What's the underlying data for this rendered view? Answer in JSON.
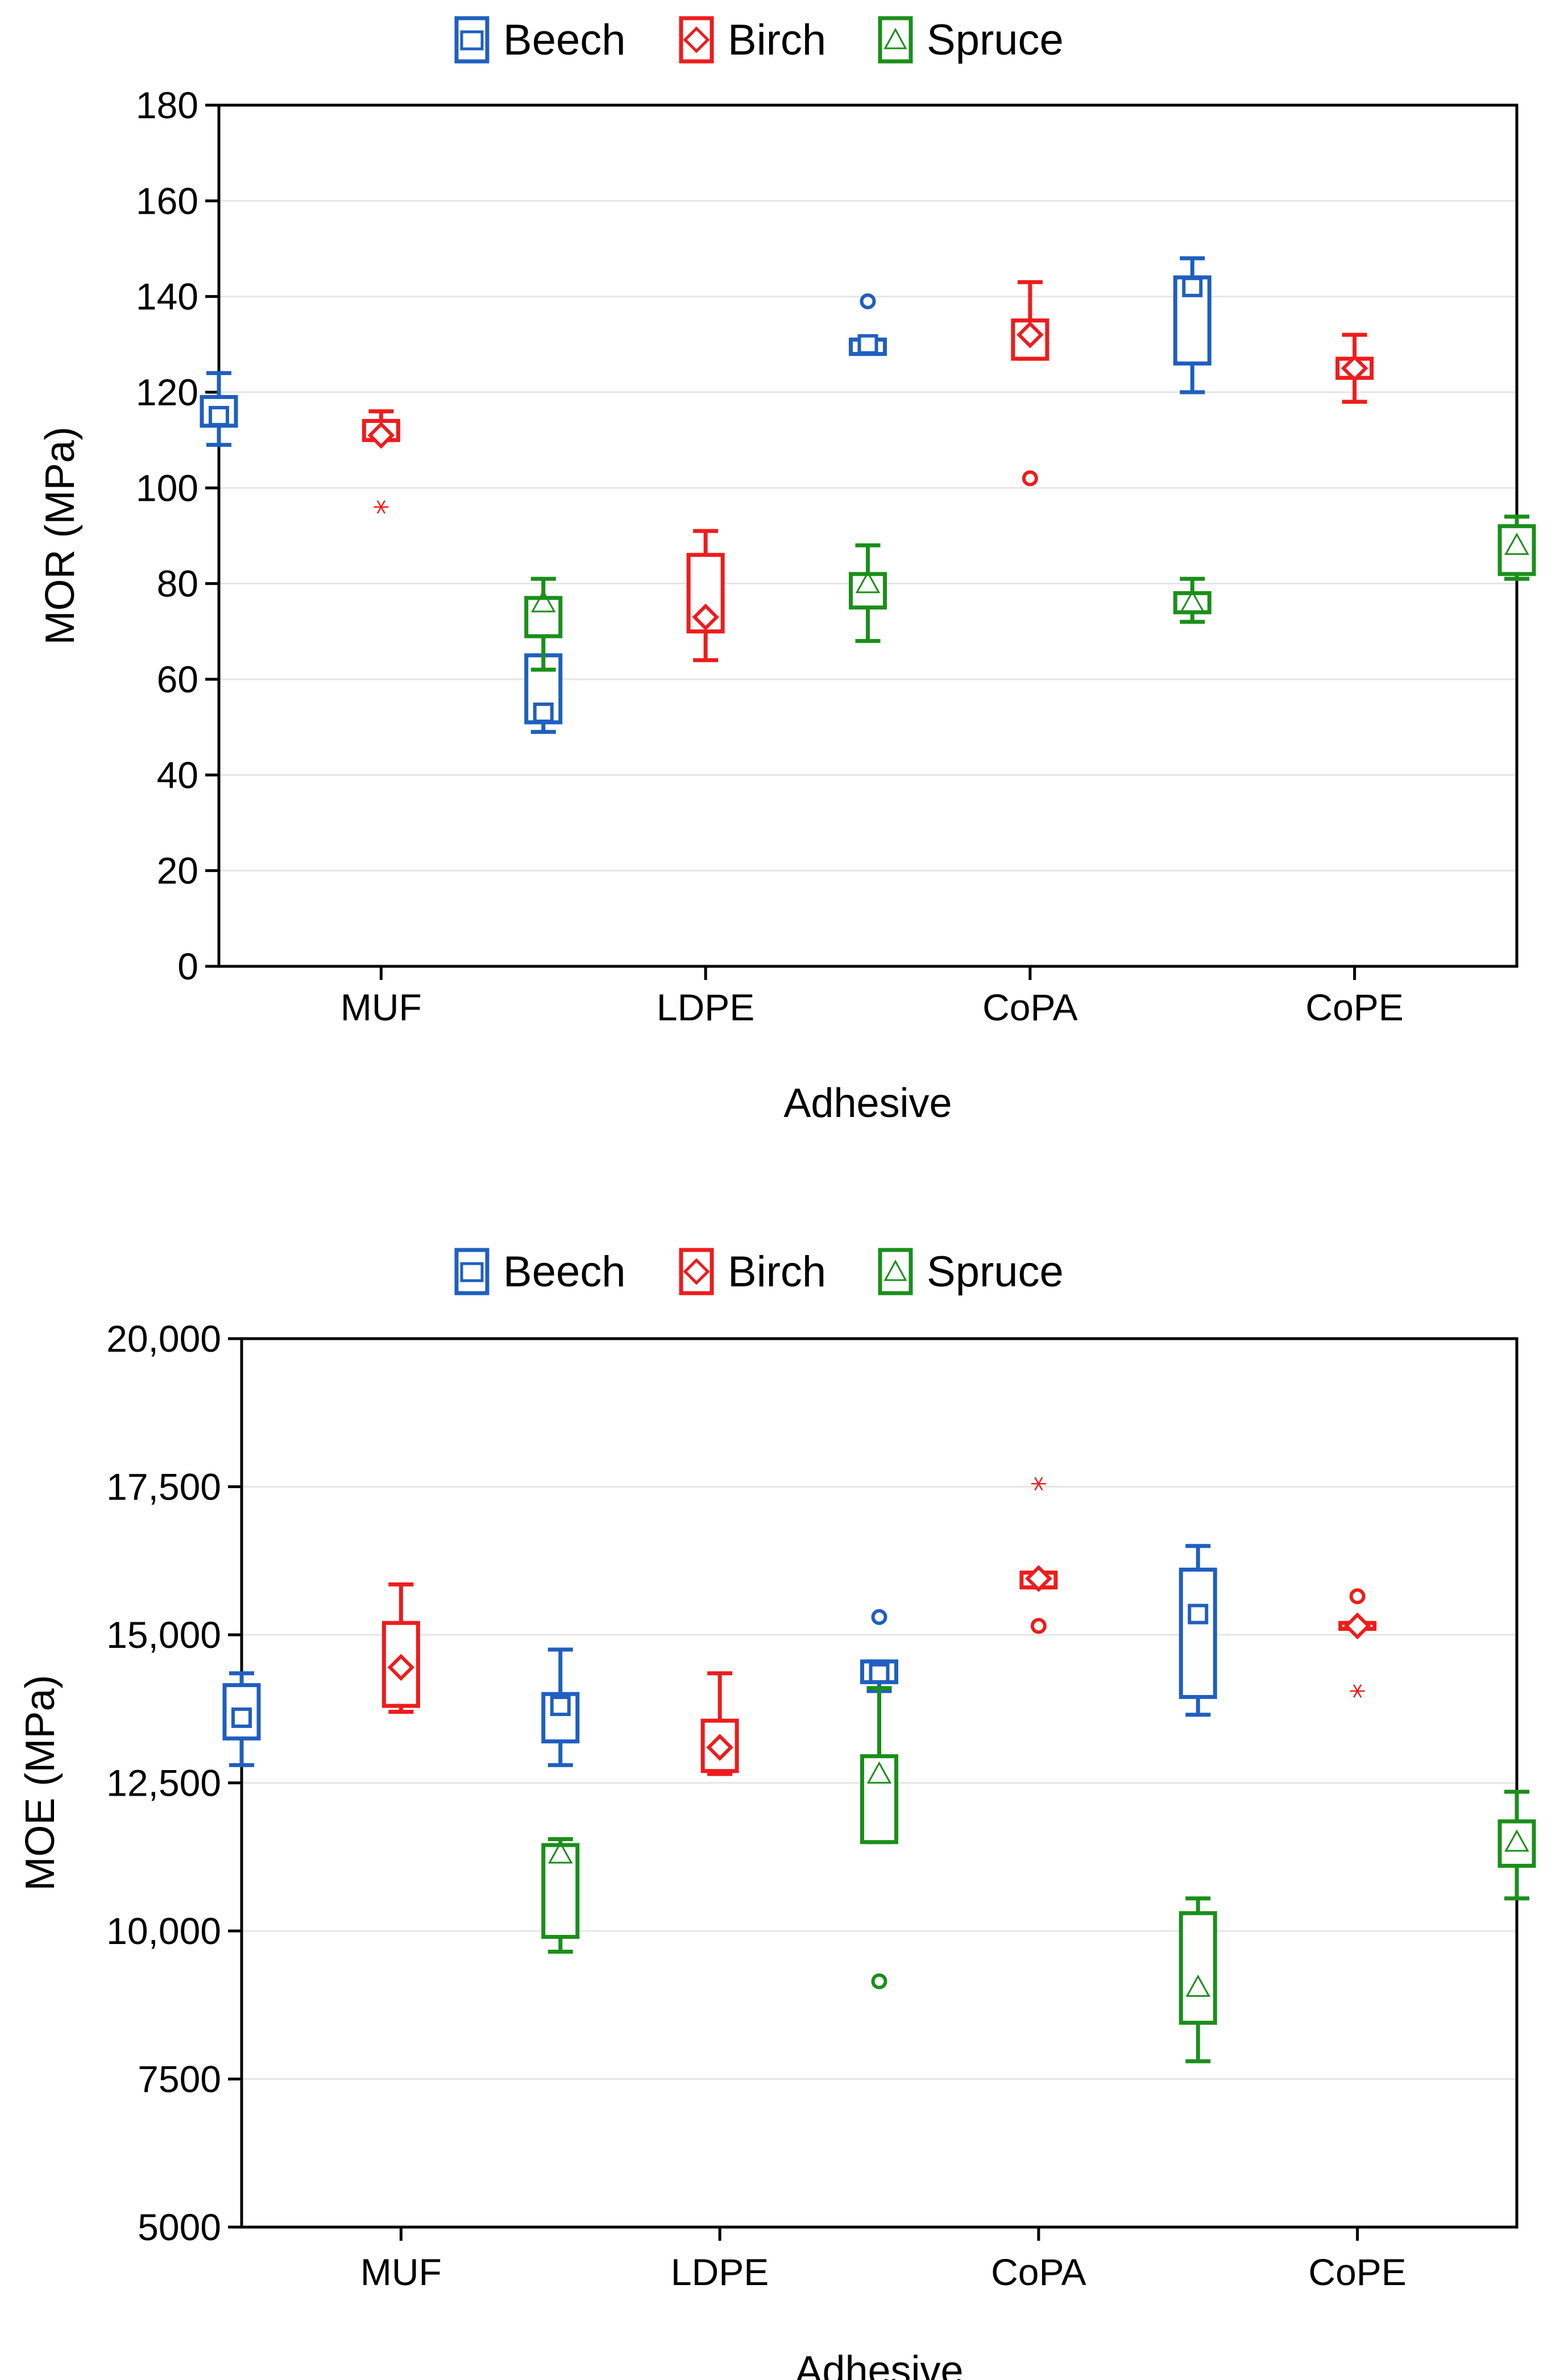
{
  "colors": {
    "Beech": "#1f5fc0",
    "Birch": "#ee1c1c",
    "Spruce": "#1a8f1a",
    "gridline": "#e6e6e6",
    "axis": "#000000"
  },
  "chart_data": [
    {
      "type": "box",
      "legend": {
        "position": "top",
        "entries": [
          "Beech",
          "Birch",
          "Spruce"
        ]
      },
      "xlabel": "Adhesive",
      "ylabel": "MOR (MPa)",
      "ylim": [
        0,
        180
      ],
      "yticks": [
        0,
        20,
        40,
        60,
        80,
        100,
        120,
        140,
        160,
        180
      ],
      "ytick_labels": [
        "0",
        "20",
        "40",
        "60",
        "80",
        "100",
        "120",
        "140",
        "160",
        "180"
      ],
      "categories": [
        "MUF",
        "LDPE",
        "CoPA",
        "CoPE"
      ],
      "grid": true,
      "series": [
        {
          "name": "Beech",
          "marker": "square",
          "boxes": [
            {
              "whisker_low": 109,
              "q1": 113,
              "median": 115,
              "q3": 119,
              "whisker_high": 124,
              "outliers": [],
              "extremes": []
            },
            {
              "whisker_low": 49,
              "q1": 51,
              "median": 53,
              "q3": 65,
              "whisker_high": 65,
              "outliers": [],
              "extremes": []
            },
            {
              "whisker_low": 128,
              "q1": 128,
              "median": 130,
              "q3": 131,
              "whisker_high": 131,
              "outliers": [
                139
              ],
              "extremes": []
            },
            {
              "whisker_low": 120,
              "q1": 126,
              "median": 142,
              "q3": 144,
              "whisker_high": 148,
              "outliers": [],
              "extremes": []
            }
          ]
        },
        {
          "name": "Birch",
          "marker": "diamond",
          "boxes": [
            {
              "whisker_low": 110,
              "q1": 110,
              "median": 111,
              "q3": 114,
              "whisker_high": 116,
              "outliers": [],
              "extremes": [
                96
              ]
            },
            {
              "whisker_low": 64,
              "q1": 70,
              "median": 73,
              "q3": 86,
              "whisker_high": 91,
              "outliers": [],
              "extremes": []
            },
            {
              "whisker_low": 127,
              "q1": 127,
              "median": 132,
              "q3": 135,
              "whisker_high": 143,
              "outliers": [
                102
              ],
              "extremes": []
            },
            {
              "whisker_low": 118,
              "q1": 123,
              "median": 125,
              "q3": 127,
              "whisker_high": 132,
              "outliers": [],
              "extremes": []
            }
          ]
        },
        {
          "name": "Spruce",
          "marker": "triangle",
          "boxes": [
            {
              "whisker_low": 62,
              "q1": 69,
              "median": 76,
              "q3": 77,
              "whisker_high": 81,
              "outliers": [],
              "extremes": []
            },
            {
              "whisker_low": 68,
              "q1": 75,
              "median": 80,
              "q3": 82,
              "whisker_high": 88,
              "outliers": [],
              "extremes": []
            },
            {
              "whisker_low": 72,
              "q1": 74,
              "median": 76,
              "q3": 78,
              "whisker_high": 81,
              "outliers": [],
              "extremes": []
            },
            {
              "whisker_low": 81,
              "q1": 82,
              "median": 88,
              "q3": 92,
              "whisker_high": 94,
              "outliers": [],
              "extremes": []
            }
          ]
        }
      ]
    },
    {
      "type": "box",
      "legend": {
        "position": "top",
        "entries": [
          "Beech",
          "Birch",
          "Spruce"
        ]
      },
      "xlabel": "Adhesive",
      "ylabel": "MOE (MPa)",
      "ylim": [
        5000,
        20000
      ],
      "yticks": [
        5000,
        7500,
        10000,
        12500,
        15000,
        17500,
        20000
      ],
      "ytick_labels": [
        "5000",
        "7500",
        "10,000",
        "12,500",
        "15,000",
        "17,500",
        "20,000"
      ],
      "categories": [
        "MUF",
        "LDPE",
        "CoPA",
        "CoPE"
      ],
      "grid": true,
      "series": [
        {
          "name": "Beech",
          "marker": "square",
          "boxes": [
            {
              "whisker_low": 12800,
              "q1": 13250,
              "median": 13600,
              "q3": 14150,
              "whisker_high": 14350,
              "outliers": [],
              "extremes": []
            },
            {
              "whisker_low": 12800,
              "q1": 13200,
              "median": 13800,
              "q3": 14000,
              "whisker_high": 14750,
              "outliers": [],
              "extremes": []
            },
            {
              "whisker_low": 14050,
              "q1": 14200,
              "median": 14350,
              "q3": 14550,
              "whisker_high": 14550,
              "outliers": [
                15300
              ],
              "extremes": []
            },
            {
              "whisker_low": 13650,
              "q1": 13950,
              "median": 15350,
              "q3": 16100,
              "whisker_high": 16500,
              "outliers": [],
              "extremes": []
            }
          ]
        },
        {
          "name": "Birch",
          "marker": "diamond",
          "boxes": [
            {
              "whisker_low": 13700,
              "q1": 13800,
              "median": 14450,
              "q3": 15200,
              "whisker_high": 15850,
              "outliers": [],
              "extremes": []
            },
            {
              "whisker_low": 12650,
              "q1": 12700,
              "median": 13100,
              "q3": 13550,
              "whisker_high": 14350,
              "outliers": [],
              "extremes": []
            },
            {
              "whisker_low": 15800,
              "q1": 15800,
              "median": 15950,
              "q3": 16050,
              "whisker_high": 16050,
              "outliers": [
                15150
              ],
              "extremes": [
                17550
              ]
            },
            {
              "whisker_low": 15100,
              "q1": 15100,
              "median": 15150,
              "q3": 15200,
              "whisker_high": 15200,
              "outliers": [
                15650
              ],
              "extremes": [
                14050
              ]
            }
          ]
        },
        {
          "name": "Spruce",
          "marker": "triangle",
          "boxes": [
            {
              "whisker_low": 9650,
              "q1": 9900,
              "median": 11300,
              "q3": 11450,
              "whisker_high": 11550,
              "outliers": [],
              "extremes": []
            },
            {
              "whisker_low": 11500,
              "q1": 11500,
              "median": 12650,
              "q3": 12950,
              "whisker_high": 14100,
              "outliers": [
                9150
              ],
              "extremes": []
            },
            {
              "whisker_low": 7800,
              "q1": 8450,
              "median": 9050,
              "q3": 10300,
              "whisker_high": 10550,
              "outliers": [],
              "extremes": []
            },
            {
              "whisker_low": 10550,
              "q1": 11100,
              "median": 11500,
              "q3": 11850,
              "whisker_high": 12350,
              "outliers": [],
              "extremes": []
            }
          ]
        }
      ]
    }
  ]
}
